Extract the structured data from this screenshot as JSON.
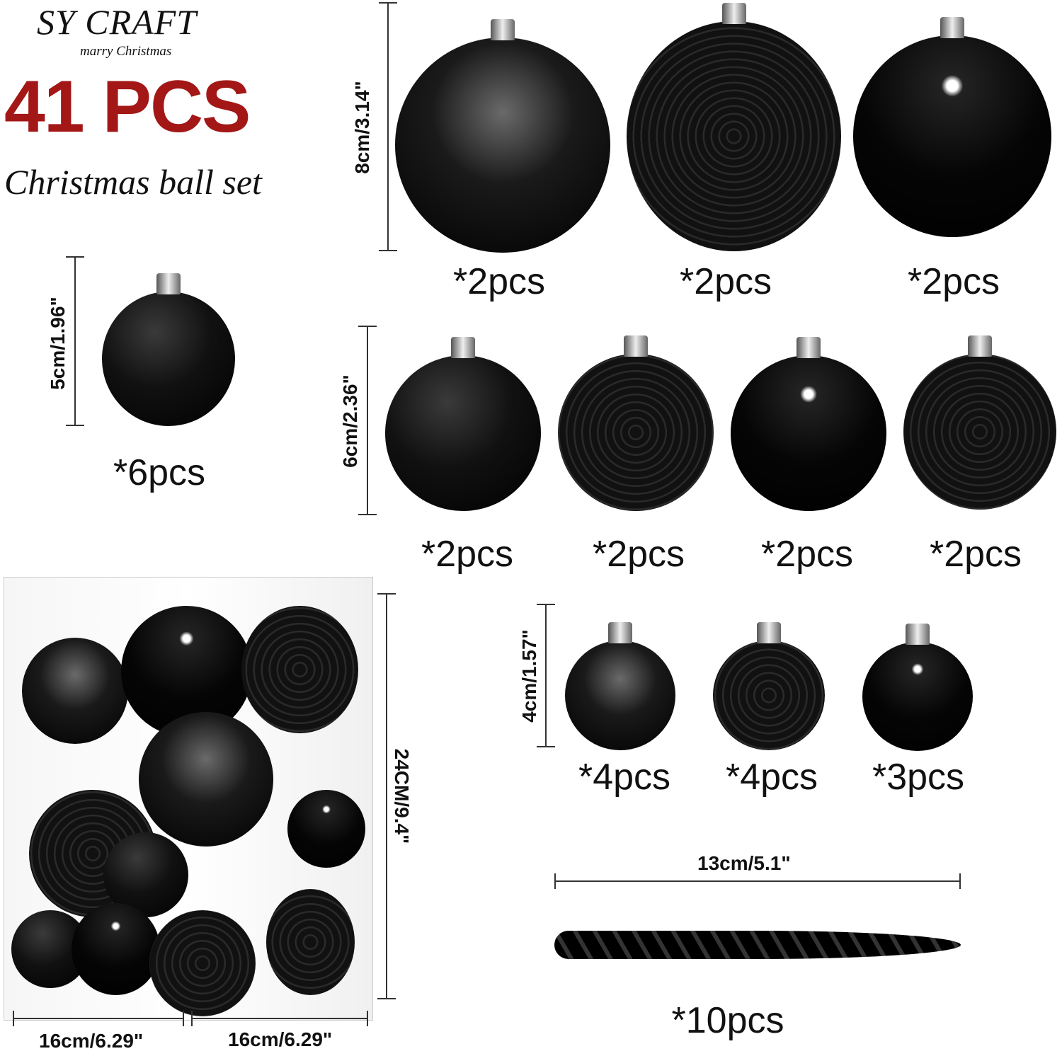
{
  "brand": {
    "name": "SY CRAFT",
    "tagline": "marry Christmas"
  },
  "headline": {
    "count": "41 PCS",
    "subtitle": "Christmas ball set",
    "color": "#a31717"
  },
  "sizes": {
    "large": {
      "dimension": "8cm/3.14\"",
      "items": [
        {
          "finish": "glitter",
          "qty": "*2pcs"
        },
        {
          "finish": "embossed-sleigh",
          "qty": "*2pcs"
        },
        {
          "finish": "shiny",
          "qty": "*2pcs"
        }
      ]
    },
    "small5": {
      "dimension": "5cm/1.96\"",
      "items": [
        {
          "finish": "matte",
          "qty": "*6pcs"
        }
      ]
    },
    "medium": {
      "dimension": "6cm/2.36\"",
      "items": [
        {
          "finish": "matte",
          "qty": "*2pcs"
        },
        {
          "finish": "embossed-floral",
          "qty": "*2pcs"
        },
        {
          "finish": "shiny",
          "qty": "*2pcs"
        },
        {
          "finish": "embossed-leaf",
          "qty": "*2pcs"
        }
      ]
    },
    "small4": {
      "dimension": "4cm/1.57\"",
      "items": [
        {
          "finish": "glitter",
          "qty": "*4pcs"
        },
        {
          "finish": "embossed-tree",
          "qty": "*4pcs"
        },
        {
          "finish": "shiny",
          "qty": "*3pcs"
        }
      ]
    },
    "icicle": {
      "dimension": "13cm/5.1\"",
      "qty": "*10pcs"
    }
  },
  "package": {
    "height": "24CM/9.4\"",
    "width": "16cm/6.29\"",
    "depth": "16cm/6.29\""
  }
}
